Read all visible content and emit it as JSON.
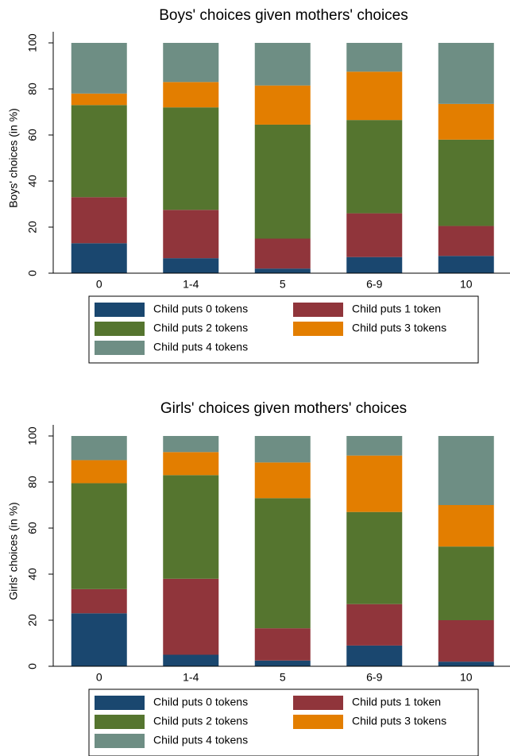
{
  "chart_data": [
    {
      "type": "stacked_bar",
      "title": "Boys' choices given mothers' choices",
      "y_label": "Boys' choices (in %)",
      "categories": [
        "0",
        "1-4",
        "5",
        "6-9",
        "10"
      ],
      "series": [
        {
          "name": "Child puts 0 tokens",
          "color": "#1a476f",
          "values": [
            13,
            6.5,
            2,
            7,
            7.5
          ]
        },
        {
          "name": "Child puts 1 token",
          "color": "#90353b",
          "values": [
            20,
            21,
            13,
            19,
            13
          ]
        },
        {
          "name": "Child puts 2 tokens",
          "color": "#55752f",
          "values": [
            40,
            44.5,
            49.5,
            40.5,
            37.5
          ]
        },
        {
          "name": "Child puts 3 tokens",
          "color": "#e37e00",
          "values": [
            5,
            11,
            17,
            21,
            15.5
          ]
        },
        {
          "name": "Child puts 4 tokens",
          "color": "#6e8e84",
          "values": [
            22,
            17,
            18.5,
            12.5,
            26.5
          ]
        }
      ],
      "ylim": [
        0,
        100
      ],
      "yticks": [
        0,
        20,
        40,
        60,
        80,
        100
      ],
      "grid": false,
      "legend": "bottom"
    },
    {
      "type": "stacked_bar",
      "title": "Girls' choices given mothers' choices",
      "y_label": "Girls' choices (in %)",
      "categories": [
        "0",
        "1-4",
        "5",
        "6-9",
        "10"
      ],
      "series": [
        {
          "name": "Child puts 0 tokens",
          "color": "#1a476f",
          "values": [
            23,
            5,
            2.5,
            9,
            2
          ]
        },
        {
          "name": "Child puts 1 token",
          "color": "#90353b",
          "values": [
            10.5,
            33,
            14,
            18,
            18
          ]
        },
        {
          "name": "Child puts 2 tokens",
          "color": "#55752f",
          "values": [
            46,
            45,
            56.5,
            40,
            32
          ]
        },
        {
          "name": "Child puts 3 tokens",
          "color": "#e37e00",
          "values": [
            10,
            10,
            15.5,
            24.5,
            18
          ]
        },
        {
          "name": "Child puts 4 tokens",
          "color": "#6e8e84",
          "values": [
            10.5,
            7,
            11.5,
            8.5,
            30
          ]
        }
      ],
      "ylim": [
        0,
        100
      ],
      "yticks": [
        0,
        20,
        40,
        60,
        80,
        100
      ],
      "grid": false,
      "legend": "bottom"
    }
  ]
}
